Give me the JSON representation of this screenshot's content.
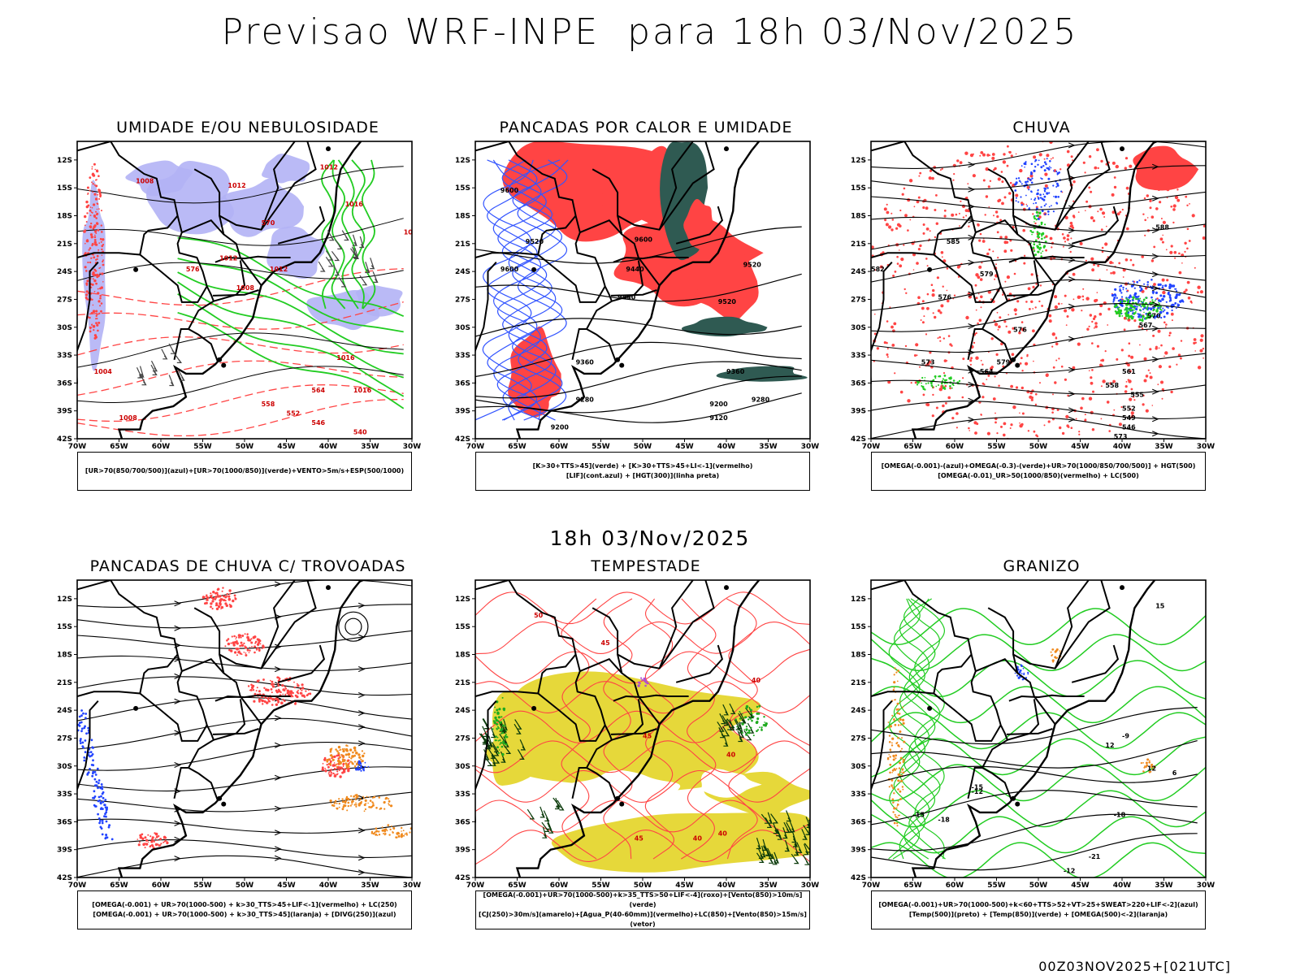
{
  "title": "Previsao WRF-INPE  para 18h 03/Nov/2025",
  "mid_title": "18h 03/Nov/2025",
  "footer": "00Z03NOV2025+[021UTC]",
  "lat_ticks": [
    "12S",
    "15S",
    "18S",
    "21S",
    "24S",
    "27S",
    "30S",
    "33S",
    "36S",
    "39S",
    "42S"
  ],
  "lon_ticks": [
    "70W",
    "65W",
    "60W",
    "55W",
    "50W",
    "45W",
    "40W",
    "35W",
    "30W"
  ],
  "panels": [
    {
      "title": "UMIDADE E/OU NEBULOSIDADE",
      "legend": [
        "[UR>70(850/700/500)](azul)+[UR>70(1000/850)](verde)+VENTO>5m/s+ESP(500/1000)"
      ],
      "labels": [
        "1008",
        "1012",
        "1012",
        "1016",
        "1020",
        "1012",
        "1012",
        "1008",
        "1016",
        "1016",
        "1004",
        "1008",
        "576",
        "570",
        "564",
        "558",
        "552",
        "546",
        "540"
      ]
    },
    {
      "title": "PANCADAS POR CALOR E UMIDADE",
      "legend": [
        "[K>30+TTS>45](verde)  +  [K>30+TTS>45+LI<-1](vermelho)",
        "[LIF](cont.azul)  +  [HGT(300)](linha preta)"
      ],
      "labels": [
        "9600",
        "9520",
        "9600",
        "9520",
        "9440",
        "9600",
        "9520",
        "9440",
        "9360",
        "9280",
        "9360",
        "9280",
        "9200",
        "9120",
        "9200"
      ]
    },
    {
      "title": "CHUVA",
      "legend": [
        "[OMEGA(-0.001)-(azul)+OMEGA(-0.3)-(verde)+UR>70(1000/850/700/500)]  +  HGT(500)",
        "[OMEGA(-0.01)_UR>50(1000/850)(vermelho)  +  LC(500)"
      ],
      "labels": [
        "588",
        "585",
        "582",
        "579",
        "576",
        "573",
        "570",
        "567",
        "564",
        "561",
        "558",
        "555",
        "552",
        "549",
        "546",
        "573",
        "576",
        "579"
      ]
    },
    {
      "title": "PANCADAS DE CHUVA C/ TROVOADAS",
      "legend": [
        "[OMEGA(-0.001)  +  UR>70(1000-500)  +  k>30_TTS>45+LIF<-1](vermelho)  +  LC(250)",
        "[OMEGA(-0.001)  +  UR>70(1000-500)  +  k>30_TTS>45](laranja)  +  [DIVG(250)](azul)"
      ],
      "labels": []
    },
    {
      "title": "TEMPESTADE",
      "legend": [
        "[OMEGA(-0.001)+UR>70(1000-500)+k>35_TTS>50+LIF<-4](roxo)+[Vento(850)>10m/s](verde)",
        "[CJ(250)>30m/s](amarelo)+[Agua_P(40-60mm)](vermelho)+LC(850)+[Vento(850)>15m/s](vetor)"
      ],
      "labels": [
        "40",
        "45",
        "50",
        "40",
        "45",
        "40",
        "45",
        "40"
      ]
    },
    {
      "title": "GRANIZO",
      "legend": [
        "[OMEGA(-0.001)+UR>70(1000-500)+k<60+TTS>52+VT>25+SWEAT>220+LIF<-2](azul)",
        "[Temp(500)](preto)  +  [Temp(850)](verde)  +  [OMEGA(500)<-2](laranja)"
      ],
      "labels": [
        "15",
        "12",
        "12",
        "6",
        "-9",
        "-12",
        "-15",
        "-18",
        "-21",
        "-12",
        "-15",
        "-18"
      ]
    }
  ],
  "colors": {
    "blue_fill": "#b3b3f5",
    "green_line": "#22cc22",
    "red": "#ff4444",
    "dark_teal": "#2f5a52",
    "yellow": "#e6d83a",
    "orange": "#f08a1e",
    "blue": "#2244ff",
    "purple": "#b04fd0"
  }
}
